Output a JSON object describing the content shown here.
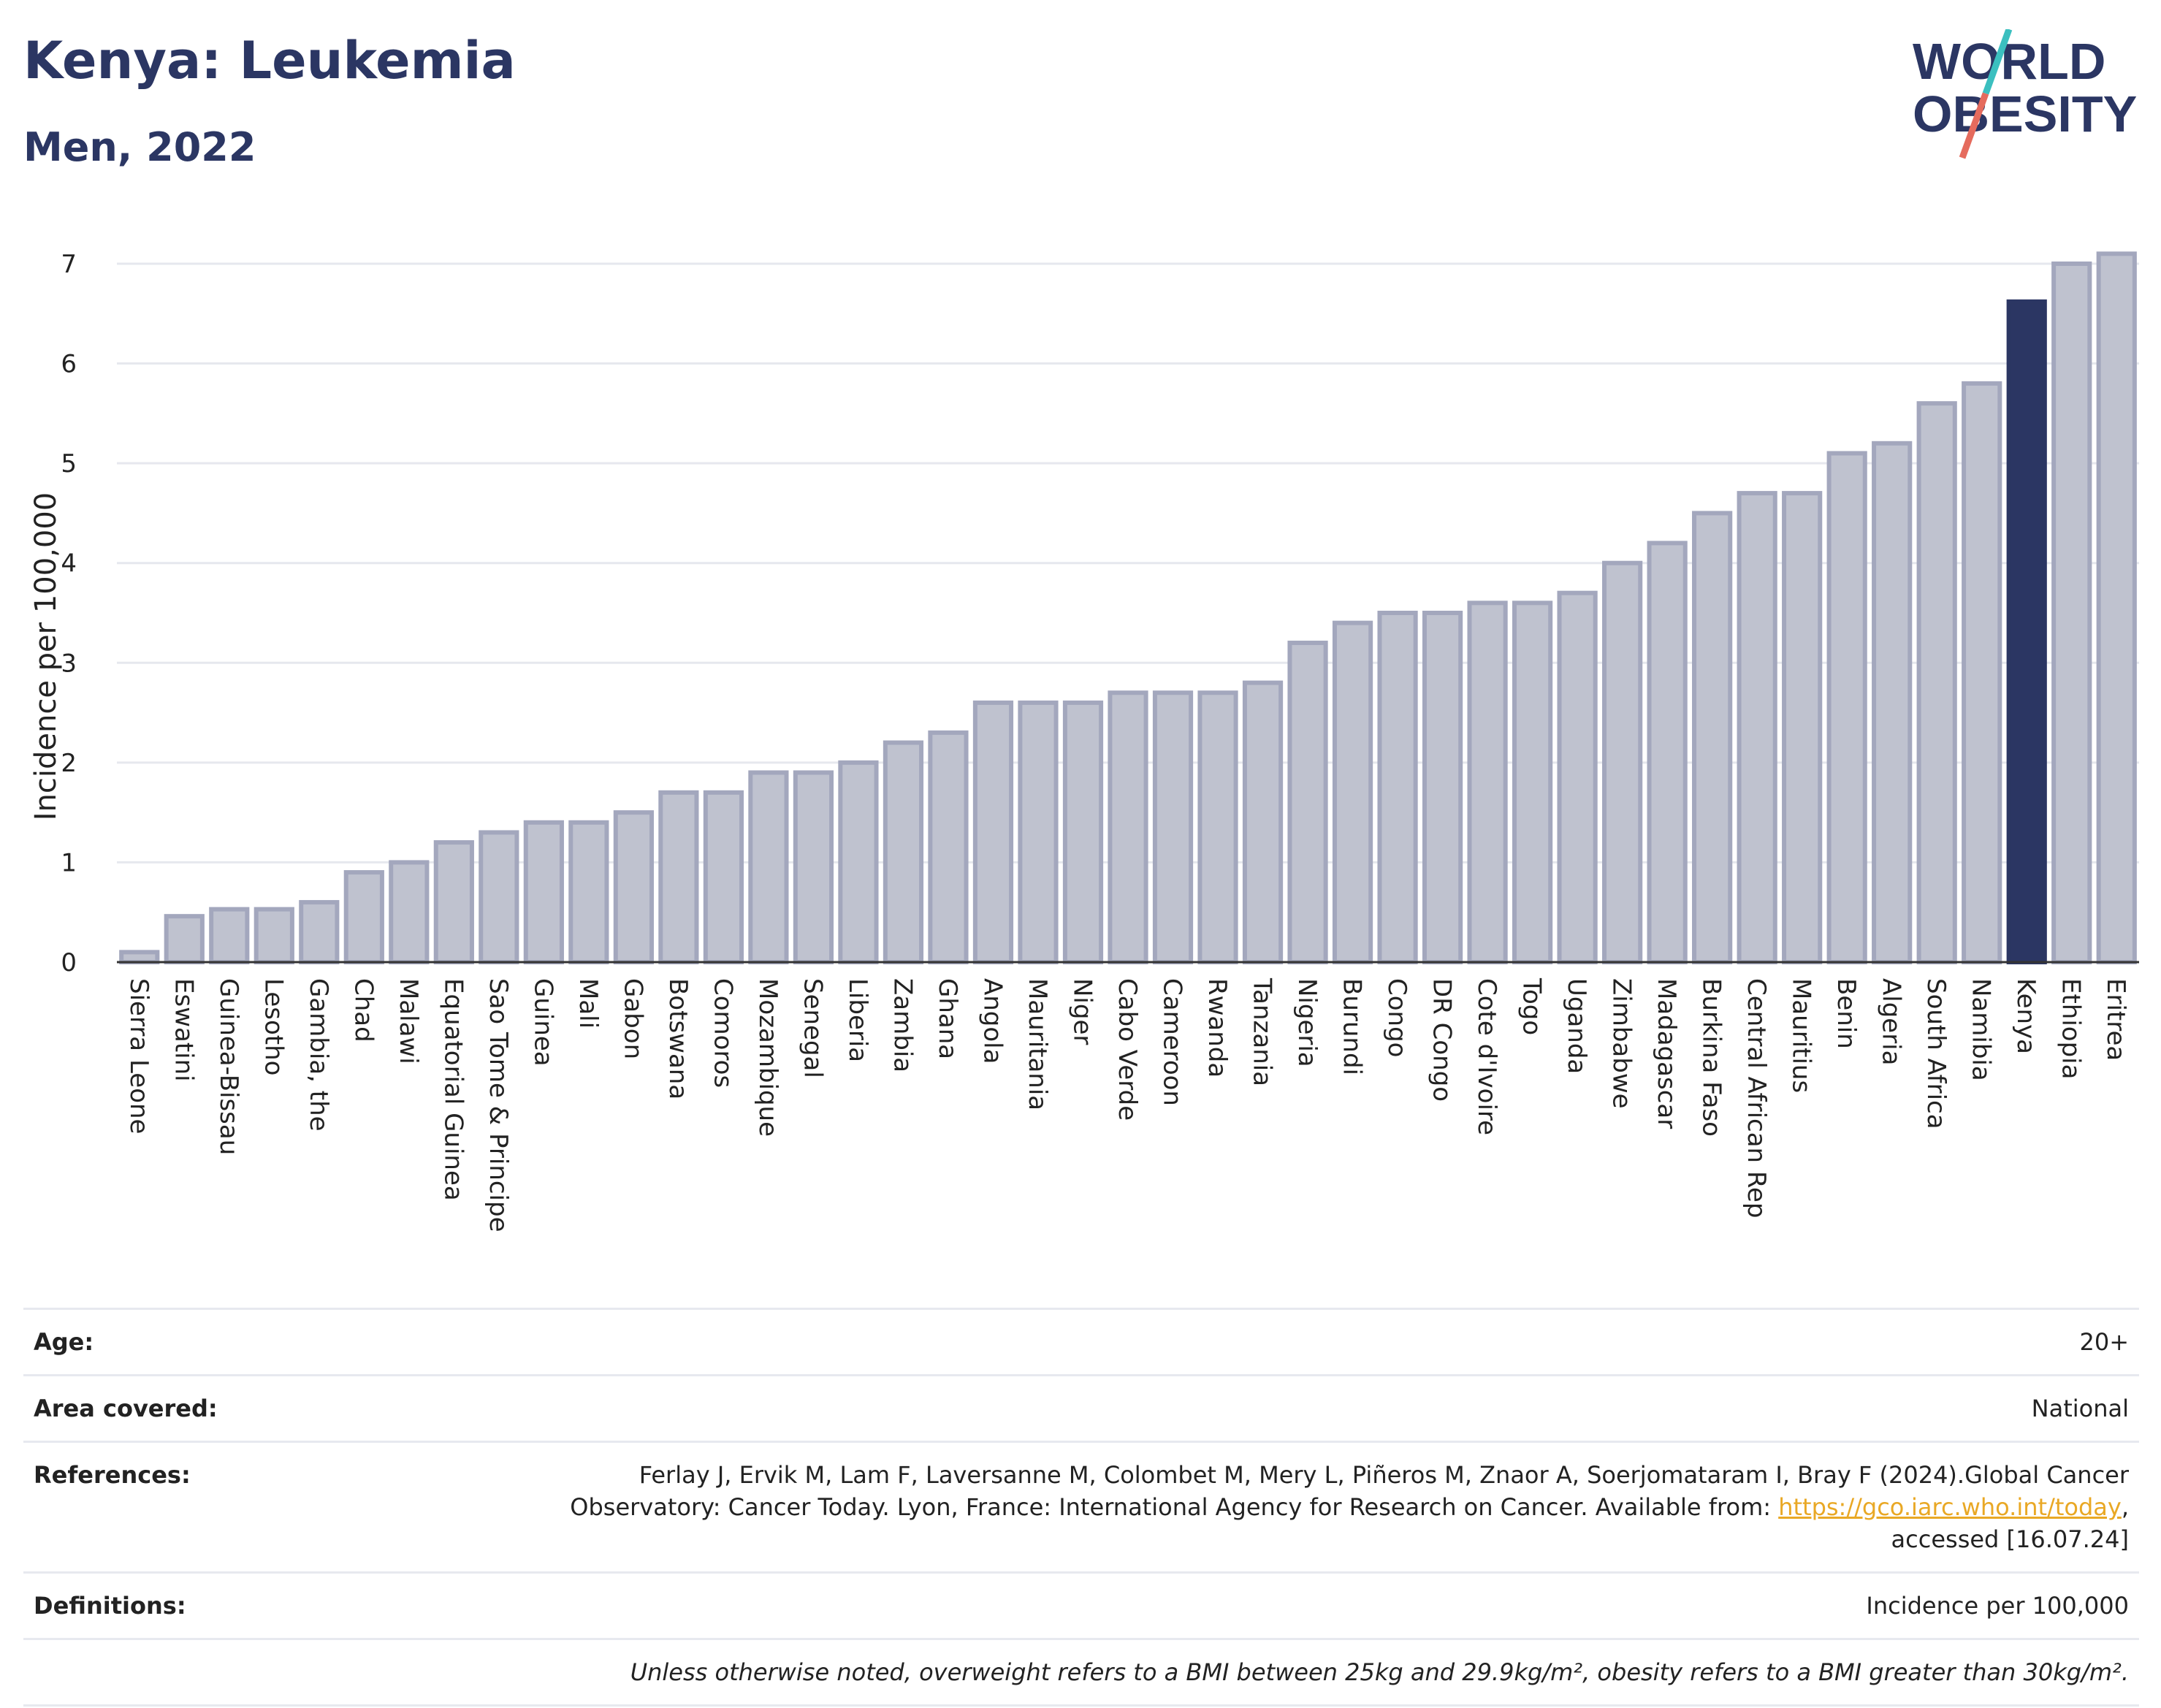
{
  "header": {
    "title": "Kenya: Leukemia",
    "subtitle": "Men, 2022",
    "logo_text_line1": "WORLD",
    "logo_text_line2": "OBESITY"
  },
  "colors": {
    "bar_default": "#bfc2cf",
    "bar_default_border": "#a3a7bd",
    "bar_highlight": "#2b3663",
    "title": "#2b3663",
    "logo_teal": "#3bbfbf",
    "logo_coral": "#e56b5d"
  },
  "chart_data": {
    "type": "bar",
    "ylabel": "Incidence per 100,000",
    "xlabel": "",
    "ylim": [
      0,
      7.3
    ],
    "yticks": [
      0,
      1,
      2,
      3,
      4,
      5,
      6,
      7
    ],
    "grid": true,
    "highlight": "Kenya",
    "categories": [
      "Sierra Leone",
      "Eswatini",
      "Guinea-Bissau",
      "Lesotho",
      "Gambia, the",
      "Chad",
      "Malawi",
      "Equatorial Guinea",
      "Sao Tome & Principe",
      "Guinea",
      "Mali",
      "Gabon",
      "Botswana",
      "Comoros",
      "Mozambique",
      "Senegal",
      "Liberia",
      "Zambia",
      "Ghana",
      "Angola",
      "Mauritania",
      "Niger",
      "Cabo Verde",
      "Cameroon",
      "Rwanda",
      "Tanzania",
      "Nigeria",
      "Burundi",
      "Congo",
      "DR Congo",
      "Cote d'Ivoire",
      "Togo",
      "Uganda",
      "Zimbabwe",
      "Madagascar",
      "Burkina Faso",
      "Central African Rep",
      "Mauritius",
      "Benin",
      "Algeria",
      "South Africa",
      "Namibia",
      "Kenya",
      "Ethiopia",
      "Eritrea"
    ],
    "values": [
      0.1,
      0.46,
      0.53,
      0.53,
      0.6,
      0.9,
      1.0,
      1.2,
      1.3,
      1.4,
      1.4,
      1.5,
      1.7,
      1.7,
      1.9,
      1.9,
      2.0,
      2.2,
      2.3,
      2.6,
      2.6,
      2.6,
      2.7,
      2.7,
      2.7,
      2.8,
      3.2,
      3.4,
      3.5,
      3.5,
      3.6,
      3.6,
      3.7,
      4.0,
      4.2,
      4.5,
      4.7,
      4.7,
      5.1,
      5.2,
      5.6,
      5.8,
      6.62,
      7.0,
      7.1
    ]
  },
  "meta": {
    "age_label": "Age:",
    "age_value": "20+",
    "area_label": "Area covered:",
    "area_value": "National",
    "references_label": "References:",
    "references_line1": "Ferlay J, Ervik M, Lam F, Laversanne M, Colombet M, Mery L, Piñeros M, Znaor A, Soerjomataram I, Bray F (2024).Global Cancer",
    "references_line2": "Observatory: Cancer Today. Lyon, France: International Agency for Research on Cancer. Available from: ",
    "references_link": "https://gco.iarc.who.int/today",
    "references_line2_end": ",",
    "references_line3": "accessed [16.07.24]",
    "definitions_label": "Definitions:",
    "definitions_value": "Incidence per 100,000",
    "note": "Unless otherwise noted, overweight refers to a BMI between 25kg and 29.9kg/m², obesity refers to a BMI greater than 30kg/m²."
  }
}
